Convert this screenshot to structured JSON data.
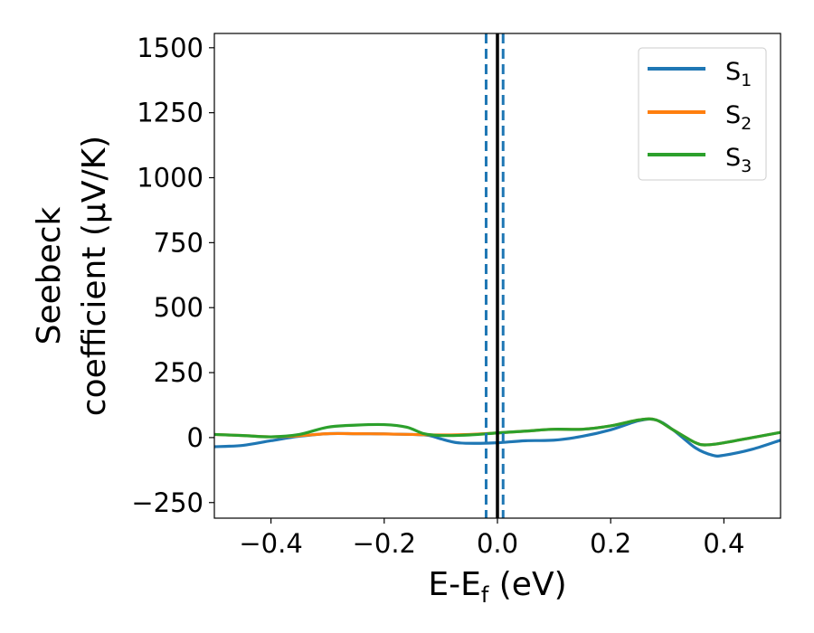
{
  "chart_data": {
    "type": "line",
    "xlabel": {
      "main": "E-E",
      "sub": "f",
      "unit": " (eV)"
    },
    "ylabel": {
      "line1": "Seebeck",
      "line2": "coefficient  (μV/K)"
    },
    "xlim": [
      -0.5,
      0.5
    ],
    "ylim": [
      -310,
      1555
    ],
    "xticks": [
      -0.4,
      -0.2,
      0.0,
      0.2,
      0.4
    ],
    "xtick_labels": [
      "−0.4",
      "−0.2",
      "0.0",
      "0.2",
      "0.4"
    ],
    "yticks": [
      -250,
      0,
      250,
      500,
      750,
      1000,
      1250,
      1500
    ],
    "ytick_labels": [
      "−250",
      "0",
      "250",
      "500",
      "750",
      "1000",
      "1250",
      "1500"
    ],
    "grid": false,
    "legend_position": "top-right",
    "vlines": [
      {
        "x": 0.0,
        "style": "solid",
        "color": "#000000"
      },
      {
        "x": -0.02,
        "style": "dashed",
        "color": "#1f77b4"
      },
      {
        "x": 0.01,
        "style": "dashed",
        "color": "#1f77b4"
      }
    ],
    "series": [
      {
        "name": "S",
        "sub": "1",
        "color": "#1f77b4",
        "points": [
          [
            -0.5,
            -35
          ],
          [
            -0.45,
            -30
          ],
          [
            -0.4,
            -12
          ],
          [
            -0.35,
            5
          ],
          [
            -0.3,
            15
          ],
          [
            -0.25,
            15
          ],
          [
            -0.2,
            14
          ],
          [
            -0.15,
            12
          ],
          [
            -0.12,
            8
          ],
          [
            -0.1,
            -5
          ],
          [
            -0.07,
            -20
          ],
          [
            -0.03,
            -22
          ],
          [
            0.0,
            -20
          ],
          [
            0.05,
            -12
          ],
          [
            0.1,
            -10
          ],
          [
            0.15,
            5
          ],
          [
            0.2,
            30
          ],
          [
            0.25,
            65
          ],
          [
            0.28,
            68
          ],
          [
            0.31,
            30
          ],
          [
            0.35,
            -40
          ],
          [
            0.38,
            -68
          ],
          [
            0.4,
            -68
          ],
          [
            0.45,
            -45
          ],
          [
            0.5,
            -10
          ]
        ]
      },
      {
        "name": "S",
        "sub": "2",
        "color": "#ff7f0e",
        "points": [
          [
            -0.5,
            12
          ],
          [
            -0.45,
            8
          ],
          [
            -0.4,
            3
          ],
          [
            -0.35,
            7
          ],
          [
            -0.3,
            15
          ],
          [
            -0.25,
            15
          ],
          [
            -0.2,
            14
          ],
          [
            -0.15,
            12
          ],
          [
            -0.1,
            10
          ],
          [
            -0.05,
            12
          ],
          [
            0.0,
            18
          ],
          [
            0.05,
            25
          ],
          [
            0.1,
            32
          ],
          [
            0.15,
            32
          ],
          [
            0.2,
            45
          ],
          [
            0.25,
            68
          ],
          [
            0.28,
            68
          ],
          [
            0.31,
            30
          ],
          [
            0.35,
            -20
          ],
          [
            0.37,
            -28
          ],
          [
            0.4,
            -20
          ],
          [
            0.45,
            0
          ],
          [
            0.5,
            20
          ]
        ]
      },
      {
        "name": "S",
        "sub": "3",
        "color": "#2ca02c",
        "points": [
          [
            -0.5,
            12
          ],
          [
            -0.45,
            8
          ],
          [
            -0.4,
            3
          ],
          [
            -0.35,
            12
          ],
          [
            -0.3,
            40
          ],
          [
            -0.25,
            48
          ],
          [
            -0.2,
            50
          ],
          [
            -0.16,
            40
          ],
          [
            -0.13,
            15
          ],
          [
            -0.1,
            8
          ],
          [
            -0.05,
            10
          ],
          [
            0.0,
            18
          ],
          [
            0.05,
            25
          ],
          [
            0.1,
            32
          ],
          [
            0.15,
            32
          ],
          [
            0.2,
            45
          ],
          [
            0.25,
            68
          ],
          [
            0.28,
            68
          ],
          [
            0.31,
            30
          ],
          [
            0.35,
            -20
          ],
          [
            0.37,
            -28
          ],
          [
            0.4,
            -20
          ],
          [
            0.45,
            0
          ],
          [
            0.5,
            20
          ]
        ]
      }
    ]
  }
}
